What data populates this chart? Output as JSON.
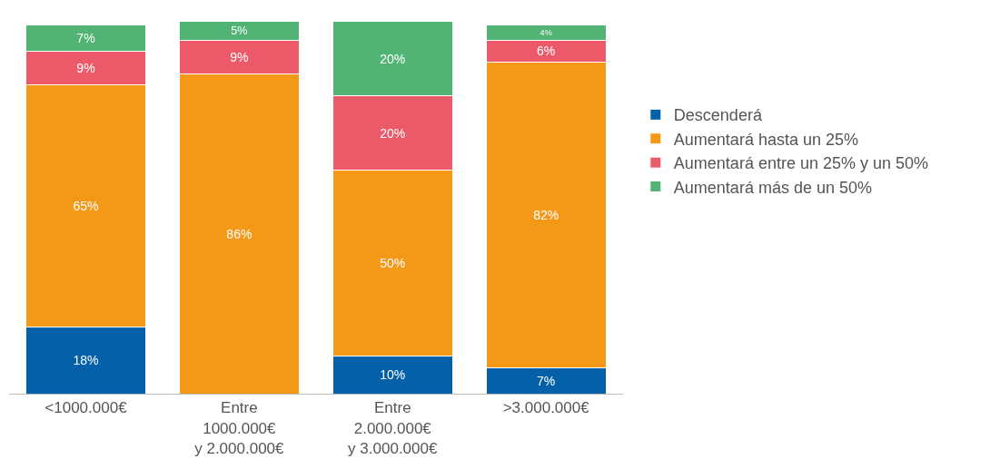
{
  "chart_data": {
    "type": "bar",
    "stacked": true,
    "legend": "right",
    "categories": [
      "<1000.000€",
      "Entre\n1000.000€\ny 2.000.000€",
      "Entre\n2.000.000€\ny 3.000.000€",
      ">3.000.000€"
    ],
    "series": [
      {
        "name": "Descenderá",
        "color": "#0460a9",
        "values": [
          18,
          null,
          10,
          7
        ],
        "value_labels": [
          "18%",
          null,
          "10%",
          "7%"
        ]
      },
      {
        "name": "Aumentará hasta un 25%",
        "color": "#f39817",
        "values": [
          65,
          86,
          50,
          82
        ],
        "value_labels": [
          "65%",
          "86%",
          "50%",
          "82%"
        ]
      },
      {
        "name": "Aumentará entre un 25% y un 50%",
        "color": "#ec5a6a",
        "values": [
          9,
          9,
          20,
          6
        ],
        "value_labels": [
          "9%",
          "9%",
          "20%",
          "6%"
        ]
      },
      {
        "name": "Aumentará más de un 50%",
        "color": "#51b374",
        "values": [
          7,
          5,
          20,
          4
        ],
        "value_labels": [
          "7%",
          "5%",
          "20%",
          "4%"
        ]
      }
    ]
  }
}
